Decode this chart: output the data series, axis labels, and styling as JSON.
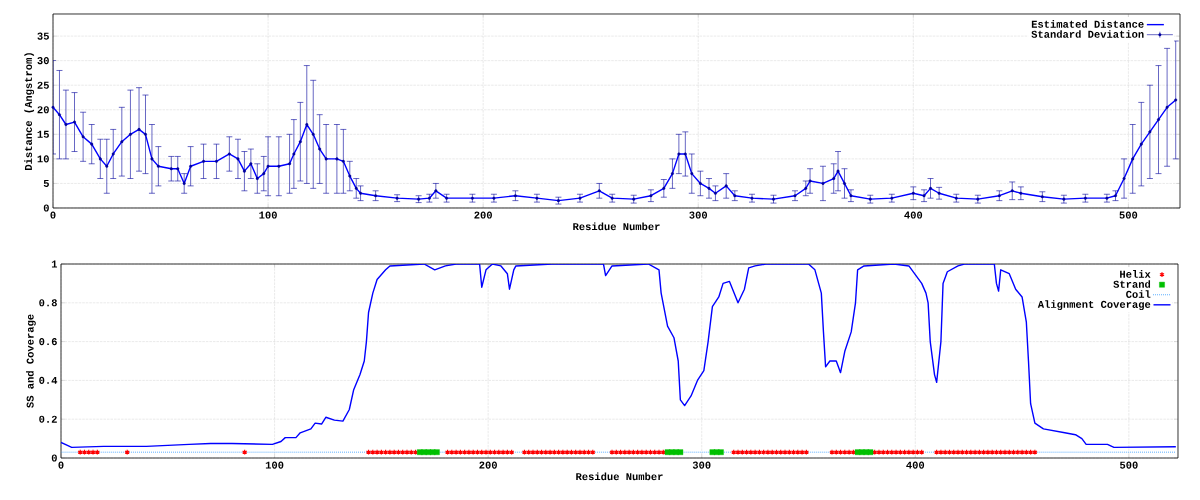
{
  "chart_data": [
    {
      "type": "line",
      "xlabel": "Residue Number",
      "ylabel": "Distance (Angstrom)",
      "xlim": [
        0,
        524
      ],
      "ylim": [
        0,
        39.5
      ],
      "xticks": [
        0,
        100,
        200,
        300,
        400,
        500
      ],
      "yticks": [
        0,
        5,
        10,
        15,
        20,
        25,
        30,
        35
      ],
      "grid": true,
      "legend": "top right",
      "x": [
        0,
        3,
        6,
        10,
        14,
        18,
        22,
        25,
        28,
        32,
        36,
        40,
        43,
        46,
        49,
        55,
        58,
        61,
        64,
        70,
        76,
        82,
        86,
        89,
        92,
        95,
        98,
        100,
        105,
        110,
        112,
        115,
        118,
        121,
        124,
        127,
        132,
        135,
        138,
        141,
        143,
        150,
        160,
        170,
        175,
        178,
        183,
        195,
        205,
        215,
        225,
        235,
        245,
        254,
        260,
        270,
        278,
        284,
        288,
        291,
        294,
        297,
        301,
        305,
        308,
        313,
        317,
        325,
        335,
        345,
        350,
        352,
        358,
        363,
        365,
        368,
        371,
        380,
        390,
        400,
        405,
        408,
        412,
        420,
        430,
        440,
        446,
        450,
        460,
        470,
        480,
        490,
        494,
        498,
        502,
        506,
        510,
        514,
        518,
        522
      ],
      "series": [
        {
          "name": "Estimated Distance",
          "color": "#0000ff",
          "values": [
            20.5,
            19,
            17,
            17.5,
            14.5,
            13,
            10,
            8.5,
            11,
            13.5,
            15,
            16,
            15,
            10,
            8.5,
            8,
            8,
            5,
            8.5,
            9.5,
            9.5,
            11,
            10,
            7.5,
            9,
            6,
            7,
            8.5,
            8.5,
            9,
            11,
            13.5,
            17,
            15,
            12,
            10,
            10,
            9.5,
            6.5,
            4,
            3,
            2.5,
            2,
            1.8,
            2,
            3.5,
            2,
            2,
            2,
            2.5,
            2,
            1.5,
            2,
            3.5,
            2,
            1.8,
            2.5,
            4,
            7,
            11,
            11,
            7,
            5,
            4,
            3,
            4.5,
            2.5,
            2,
            1.8,
            2.5,
            4,
            5.5,
            5,
            6,
            7.5,
            5,
            2.5,
            1.8,
            2,
            3,
            2.5,
            4,
            3,
            2,
            1.8,
            2.5,
            3.5,
            3,
            2.3,
            1.8,
            2,
            2,
            2.5,
            6,
            10,
            13,
            15.5,
            18,
            20.5,
            22
          ]
        },
        {
          "name": "Standard Deviation",
          "type": "scatter",
          "marker": "circle",
          "color": "#00009c",
          "values": [
            20.5,
            19,
            17,
            17.5,
            14.5,
            13,
            10,
            8.5,
            11,
            13.5,
            15,
            16,
            15,
            10,
            8.5,
            8,
            8,
            5,
            8.5,
            9.5,
            9.5,
            11,
            10,
            7.5,
            9,
            6,
            7,
            8.5,
            8.5,
            9,
            11,
            13.5,
            17,
            15,
            12,
            10,
            10,
            9.5,
            6.5,
            4,
            3,
            2.5,
            2,
            1.8,
            2,
            3.5,
            2,
            2,
            2,
            2.5,
            2,
            1.5,
            2,
            3.5,
            2,
            1.8,
            2.5,
            4,
            7,
            11,
            11,
            7,
            5,
            4,
            3,
            4.5,
            2.5,
            2,
            1.8,
            2.5,
            4,
            5.5,
            5,
            6,
            7.5,
            5,
            2.5,
            1.8,
            2,
            3,
            2.5,
            4,
            3,
            2,
            1.8,
            2.5,
            3.5,
            3,
            2.3,
            1.8,
            2,
            2,
            2.5,
            6,
            10,
            13,
            15.5,
            18,
            20.5,
            22
          ],
          "errors": [
            9.5,
            9,
            7,
            6,
            5,
            4,
            4,
            5.5,
            5,
            7,
            9,
            8.5,
            8,
            7,
            4,
            2.5,
            2.5,
            2,
            4,
            3.5,
            3.5,
            3.5,
            4,
            4,
            3,
            3,
            3.5,
            6,
            6,
            6,
            7,
            8,
            12,
            11,
            7,
            7,
            7,
            6.5,
            3,
            2,
            1.5,
            1,
            0.7,
            0.7,
            0.8,
            1.5,
            0.8,
            0.8,
            0.8,
            1,
            0.8,
            0.7,
            0.8,
            1.5,
            0.8,
            0.8,
            1.2,
            1.8,
            3,
            4,
            4.5,
            4,
            2.5,
            2,
            1.5,
            2.5,
            1,
            0.8,
            0.8,
            1,
            1.5,
            2.5,
            3.5,
            3,
            4,
            3,
            1.2,
            0.8,
            0.8,
            1.3,
            1.2,
            2,
            1.2,
            0.8,
            0.8,
            1,
            1.8,
            1.3,
            1,
            0.8,
            0.8,
            0.8,
            1,
            4,
            7,
            8.5,
            9.5,
            11,
            12,
            12
          ]
        }
      ]
    },
    {
      "type": "line",
      "xlabel": "Residue Number",
      "ylabel": "SS and Coverage",
      "xlim": [
        0,
        523
      ],
      "ylim": [
        0,
        1
      ],
      "xticks": [
        0,
        100,
        200,
        300,
        400,
        500
      ],
      "yticks": [
        0,
        0.2,
        0.4,
        0.6,
        0.8,
        1
      ],
      "grid": true,
      "legend": "top right",
      "series": [
        {
          "name": "Helix",
          "type": "scatter",
          "marker": "cross",
          "color": "#ff0000",
          "x": [
            9,
            11,
            13,
            15,
            17,
            31,
            86,
            144,
            146,
            148,
            150,
            152,
            154,
            156,
            158,
            160,
            162,
            164,
            166,
            181,
            183,
            185,
            187,
            189,
            191,
            193,
            195,
            197,
            199,
            201,
            203,
            205,
            207,
            209,
            211,
            217,
            219,
            221,
            223,
            225,
            227,
            229,
            231,
            233,
            235,
            237,
            239,
            241,
            243,
            245,
            247,
            249,
            258,
            260,
            262,
            264,
            266,
            268,
            270,
            272,
            274,
            276,
            278,
            280,
            282,
            315,
            317,
            319,
            321,
            323,
            325,
            327,
            329,
            331,
            333,
            335,
            337,
            339,
            341,
            343,
            345,
            347,
            349,
            361,
            363,
            365,
            367,
            369,
            371,
            381,
            383,
            385,
            387,
            389,
            391,
            393,
            395,
            397,
            399,
            401,
            403,
            410,
            412,
            414,
            416,
            418,
            420,
            422,
            424,
            426,
            428,
            430,
            432,
            434,
            436,
            438,
            440,
            442,
            444,
            446,
            448,
            450,
            452,
            454,
            456
          ],
          "values": [
            0.03,
            0.03,
            0.03,
            0.03,
            0.03,
            0.03,
            0.03,
            0.03,
            0.03,
            0.03,
            0.03,
            0.03,
            0.03,
            0.03,
            0.03,
            0.03,
            0.03,
            0.03,
            0.03,
            0.03,
            0.03,
            0.03,
            0.03,
            0.03,
            0.03,
            0.03,
            0.03,
            0.03,
            0.03,
            0.03,
            0.03,
            0.03,
            0.03,
            0.03,
            0.03,
            0.03,
            0.03,
            0.03,
            0.03,
            0.03,
            0.03,
            0.03,
            0.03,
            0.03,
            0.03,
            0.03,
            0.03,
            0.03,
            0.03,
            0.03,
            0.03,
            0.03,
            0.03,
            0.03,
            0.03,
            0.03,
            0.03,
            0.03,
            0.03,
            0.03,
            0.03,
            0.03,
            0.03,
            0.03,
            0.03,
            0.03,
            0.03,
            0.03,
            0.03,
            0.03,
            0.03,
            0.03,
            0.03,
            0.03,
            0.03,
            0.03,
            0.03,
            0.03,
            0.03,
            0.03,
            0.03,
            0.03,
            0.03,
            0.03,
            0.03,
            0.03,
            0.03,
            0.03,
            0.03,
            0.03,
            0.03,
            0.03,
            0.03,
            0.03,
            0.03,
            0.03,
            0.03,
            0.03,
            0.03,
            0.03,
            0.03,
            0.03,
            0.03,
            0.03,
            0.03,
            0.03,
            0.03,
            0.03,
            0.03,
            0.03,
            0.03,
            0.03,
            0.03,
            0.03,
            0.03,
            0.03,
            0.03,
            0.03,
            0.03,
            0.03,
            0.03,
            0.03,
            0.03,
            0.03,
            0.03
          ]
        },
        {
          "name": "Strand",
          "type": "scatter",
          "marker": "square",
          "color": "#00c000",
          "x": [
            168,
            170,
            172,
            174,
            176,
            284,
            286,
            288,
            290,
            305,
            307,
            309,
            373,
            375,
            377,
            379
          ],
          "values": [
            0.03,
            0.03,
            0.03,
            0.03,
            0.03,
            0.03,
            0.03,
            0.03,
            0.03,
            0.03,
            0.03,
            0.03,
            0.03,
            0.03,
            0.03,
            0.03
          ]
        },
        {
          "name": "Coil",
          "type": "line",
          "line_style": "dotted",
          "color": "#1e90ff",
          "x": [
            0,
            522
          ],
          "values": [
            0.03,
            0.03
          ]
        },
        {
          "name": "Alignment Coverage",
          "type": "line",
          "color": "#0000ff",
          "x": [
            0,
            3,
            5,
            20,
            40,
            50,
            60,
            70,
            80,
            99,
            103,
            105,
            110,
            112,
            117,
            119,
            122,
            124,
            128,
            132,
            135,
            137,
            140,
            142,
            143,
            144,
            146,
            148,
            152,
            154,
            170,
            175,
            180,
            185,
            196,
            197,
            199,
            202,
            206,
            209,
            210,
            212,
            213,
            230,
            254,
            255,
            258,
            275,
            280,
            281,
            284,
            287,
            289,
            290,
            292,
            295,
            298,
            301,
            303,
            305,
            308,
            310,
            313,
            317,
            320,
            322,
            325,
            330,
            350,
            353,
            356,
            357,
            358,
            360,
            363,
            365,
            367,
            370,
            372,
            373,
            376,
            390,
            397,
            403,
            405,
            406,
            407,
            409,
            410,
            412,
            413,
            415,
            420,
            423,
            437,
            438,
            439,
            440,
            444,
            447,
            450,
            452,
            453,
            454,
            456,
            460,
            465,
            470,
            475,
            478,
            480,
            490,
            493,
            522
          ],
          "values": [
            0.08,
            0.065,
            0.055,
            0.06,
            0.06,
            0.065,
            0.07,
            0.075,
            0.075,
            0.07,
            0.085,
            0.105,
            0.105,
            0.13,
            0.15,
            0.18,
            0.175,
            0.21,
            0.195,
            0.19,
            0.25,
            0.35,
            0.43,
            0.5,
            0.6,
            0.75,
            0.85,
            0.92,
            0.97,
            0.99,
            1,
            0.97,
            0.99,
            1,
            1,
            0.88,
            0.97,
            1,
            0.99,
            0.95,
            0.87,
            0.97,
            0.99,
            1,
            1,
            0.94,
            0.99,
            1,
            0.97,
            0.85,
            0.68,
            0.62,
            0.5,
            0.3,
            0.27,
            0.32,
            0.4,
            0.45,
            0.6,
            0.78,
            0.83,
            0.9,
            0.91,
            0.8,
            0.87,
            0.98,
            0.99,
            1,
            1,
            0.97,
            0.85,
            0.65,
            0.47,
            0.5,
            0.5,
            0.44,
            0.55,
            0.65,
            0.8,
            0.97,
            0.99,
            1,
            0.99,
            0.9,
            0.85,
            0.8,
            0.6,
            0.43,
            0.39,
            0.6,
            0.9,
            0.96,
            0.99,
            1,
            1,
            0.9,
            0.86,
            0.97,
            0.95,
            0.87,
            0.83,
            0.7,
            0.5,
            0.28,
            0.18,
            0.15,
            0.14,
            0.13,
            0.12,
            0.1,
            0.07,
            0.07,
            0.055,
            0.058
          ]
        }
      ]
    }
  ]
}
